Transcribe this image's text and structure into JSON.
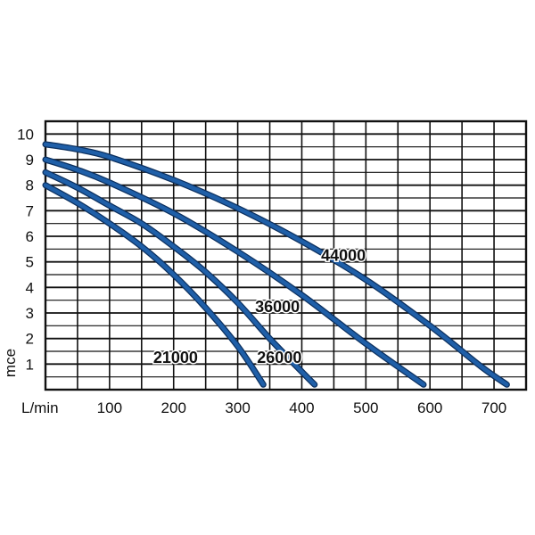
{
  "chart_data": {
    "type": "line",
    "title": "",
    "xlabel": "L/min",
    "ylabel": "mce",
    "xlim": [
      0,
      750
    ],
    "ylim": [
      0,
      10.5
    ],
    "x_ticks": [
      100,
      200,
      300,
      400,
      500,
      600,
      700
    ],
    "y_ticks": [
      1,
      2,
      3,
      4,
      5,
      6,
      7,
      8,
      9,
      10
    ],
    "grid": true,
    "legend": "inline",
    "series_color": "#1f5fa8",
    "series": [
      {
        "name": "21000",
        "points": [
          [
            0,
            8.0
          ],
          [
            50,
            7.3
          ],
          [
            100,
            6.5
          ],
          [
            150,
            5.6
          ],
          [
            200,
            4.5
          ],
          [
            250,
            3.2
          ],
          [
            300,
            1.7
          ],
          [
            340,
            0.2
          ]
        ]
      },
      {
        "name": "26000",
        "points": [
          [
            0,
            8.5
          ],
          [
            50,
            7.9
          ],
          [
            100,
            7.2
          ],
          [
            150,
            6.5
          ],
          [
            200,
            5.6
          ],
          [
            250,
            4.6
          ],
          [
            300,
            3.4
          ],
          [
            350,
            2.0
          ],
          [
            400,
            0.7
          ],
          [
            420,
            0.2
          ]
        ]
      },
      {
        "name": "36000",
        "points": [
          [
            0,
            9.0
          ],
          [
            50,
            8.6
          ],
          [
            100,
            8.1
          ],
          [
            200,
            6.9
          ],
          [
            300,
            5.4
          ],
          [
            400,
            3.7
          ],
          [
            500,
            1.8
          ],
          [
            590,
            0.2
          ]
        ]
      },
      {
        "name": "44000",
        "points": [
          [
            0,
            9.6
          ],
          [
            50,
            9.4
          ],
          [
            100,
            9.1
          ],
          [
            200,
            8.2
          ],
          [
            300,
            7.1
          ],
          [
            400,
            5.8
          ],
          [
            500,
            4.3
          ],
          [
            600,
            2.5
          ],
          [
            680,
            0.9
          ],
          [
            720,
            0.2
          ]
        ]
      }
    ]
  }
}
